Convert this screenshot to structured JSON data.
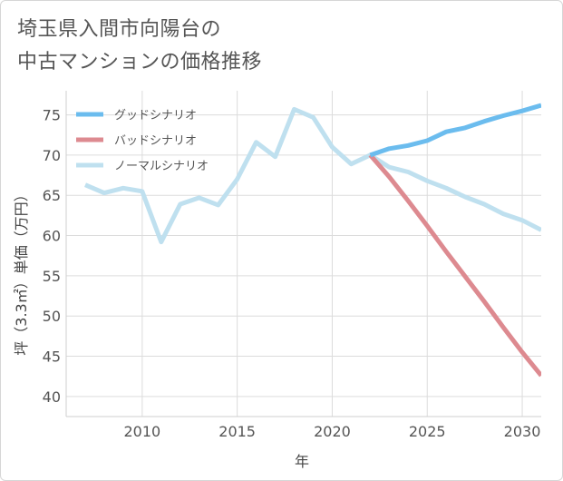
{
  "title_lines": [
    "埼玉県入間市向陽台の",
    "中古マンションの価格推移"
  ],
  "chart_data": {
    "type": "line",
    "title": "埼玉県入間市向陽台の中古マンションの価格推移",
    "xlabel": "年",
    "ylabel": "坪（3.3㎡）単価（万円）",
    "xlim": [
      2006,
      2031
    ],
    "ylim": [
      37.5,
      78
    ],
    "xticks": [
      2010,
      2015,
      2020,
      2025,
      2030
    ],
    "yticks": [
      40,
      45,
      50,
      55,
      60,
      65,
      70,
      75
    ],
    "grid": true,
    "legend_position": "top-left",
    "series": [
      {
        "name": "グッドシナリオ",
        "color": "#6bbcee",
        "x": [
          2022,
          2023,
          2024,
          2025,
          2026,
          2027,
          2028,
          2029,
          2030,
          2031
        ],
        "y": [
          70.0,
          70.8,
          71.2,
          71.8,
          72.9,
          73.4,
          74.2,
          74.9,
          75.5,
          76.2
        ]
      },
      {
        "name": "バッドシナリオ",
        "color": "#dd8a90",
        "x": [
          2022,
          2023,
          2024,
          2025,
          2026,
          2027,
          2028,
          2029,
          2030,
          2031
        ],
        "y": [
          70.0,
          67.3,
          64.3,
          61.2,
          58.0,
          54.9,
          51.8,
          48.6,
          45.5,
          42.6
        ]
      },
      {
        "name": "ノーマルシナリオ",
        "color": "#bfe0ef",
        "x": [
          2007,
          2008,
          2009,
          2010,
          2011,
          2012,
          2013,
          2014,
          2015,
          2016,
          2017,
          2018,
          2019,
          2020,
          2021,
          2022,
          2023,
          2024,
          2025,
          2026,
          2027,
          2028,
          2029,
          2030,
          2031
        ],
        "y": [
          66.3,
          65.3,
          65.9,
          65.5,
          59.2,
          63.9,
          64.7,
          63.8,
          67.0,
          71.6,
          69.8,
          75.7,
          74.7,
          71.0,
          68.9,
          70.0,
          68.5,
          67.9,
          66.8,
          65.9,
          64.8,
          63.9,
          62.7,
          61.9,
          60.7
        ]
      }
    ]
  }
}
